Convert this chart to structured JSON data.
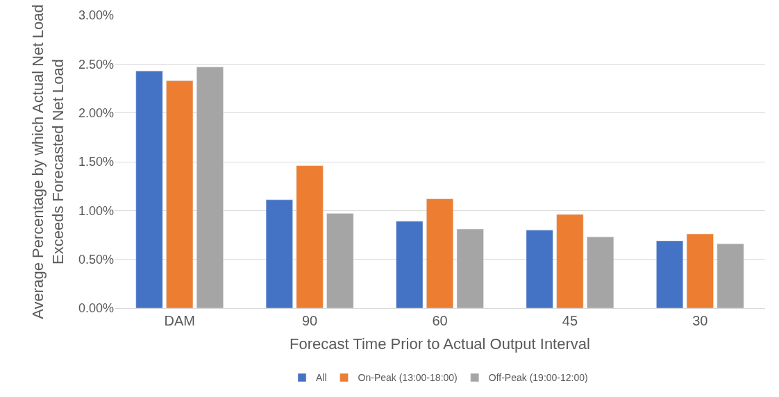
{
  "chart_data": {
    "type": "bar",
    "xlabel": "Forecast Time Prior to Actual Output Interval",
    "ylabel": "Average Percentage by which Actual Net Load\nExceeds Forecasted Net Load",
    "categories": [
      "DAM",
      "90",
      "60",
      "45",
      "30"
    ],
    "series": [
      {
        "name": "All",
        "color": "#4472c4",
        "values": [
          2.43,
          1.11,
          0.89,
          0.8,
          0.69
        ]
      },
      {
        "name": "On-Peak (13:00-18:00)",
        "color": "#ed7d31",
        "values": [
          2.33,
          1.46,
          1.12,
          0.96,
          0.76
        ]
      },
      {
        "name": "Off-Peak (19:00-12:00)",
        "color": "#a5a5a5",
        "values": [
          2.47,
          0.97,
          0.81,
          0.73,
          0.66
        ]
      }
    ],
    "ylim": [
      0,
      3
    ],
    "yticks": [
      {
        "value": 0,
        "label": "0.00%"
      },
      {
        "value": 0.5,
        "label": "0.50%"
      },
      {
        "value": 1,
        "label": "1.00%"
      },
      {
        "value": 1.5,
        "label": "1.50%"
      },
      {
        "value": 2,
        "label": "2.00%"
      },
      {
        "value": 2.5,
        "label": "2.50%"
      },
      {
        "value": 3,
        "label": "3.00%"
      }
    ],
    "grid": "y",
    "legend": "bottom"
  }
}
